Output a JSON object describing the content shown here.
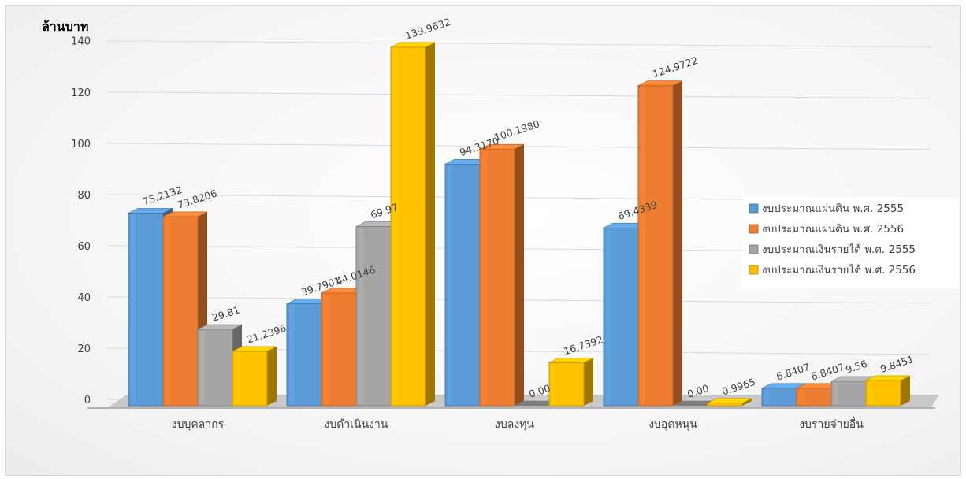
{
  "chart_data": {
    "type": "bar",
    "style": "3d-clustered-column",
    "unit_label": "ล้านบาท",
    "categories": [
      "งบบุคลากร",
      "งบดำเนินงาน",
      "งบลงทุน",
      "งบอุดหนุน",
      "งบรายจ่ายอื่น"
    ],
    "series": [
      {
        "name": "งบประมาณแผ่นดิน พ.ศ. 2555",
        "color": "#5B9BD5",
        "values": [
          75.2132,
          39.7901,
          94.317,
          69.4339,
          6.8407
        ],
        "labels": [
          "75.2132",
          "39.7901",
          "94.3170",
          "69.4339",
          "6.8407"
        ]
      },
      {
        "name": "งบประมาณแผ่นดิน พ.ศ. 2556",
        "color": "#ED7D31",
        "values": [
          73.8206,
          44.0146,
          100.198,
          124.9722,
          6.8407
        ],
        "labels": [
          "73.8206",
          "44.0146",
          "100.1980",
          "124.9722",
          "6.8407"
        ]
      },
      {
        "name": "งบประมาณเงินรายได้ พ.ศ. 2555",
        "color": "#A5A5A5",
        "values": [
          29.81,
          69.97,
          0,
          0,
          9.56
        ],
        "labels": [
          "29.81",
          "69.97",
          "0.00",
          "0.00",
          "9.56"
        ]
      },
      {
        "name": "งบประมาณเงินรายได้ พ.ศ. 2556",
        "color": "#FFC000",
        "values": [
          21.2396,
          139.9632,
          16.7392,
          0.9965,
          9.8451
        ],
        "labels": [
          "21.2396",
          "139.9632",
          "16.7392",
          "0.9965",
          "9.8451"
        ]
      }
    ],
    "y_ticks": [
      "0",
      "20",
      "40",
      "60",
      "80",
      "100",
      "120",
      "140"
    ],
    "ylim": [
      0,
      140
    ],
    "grid": true,
    "legend_position": "right"
  }
}
